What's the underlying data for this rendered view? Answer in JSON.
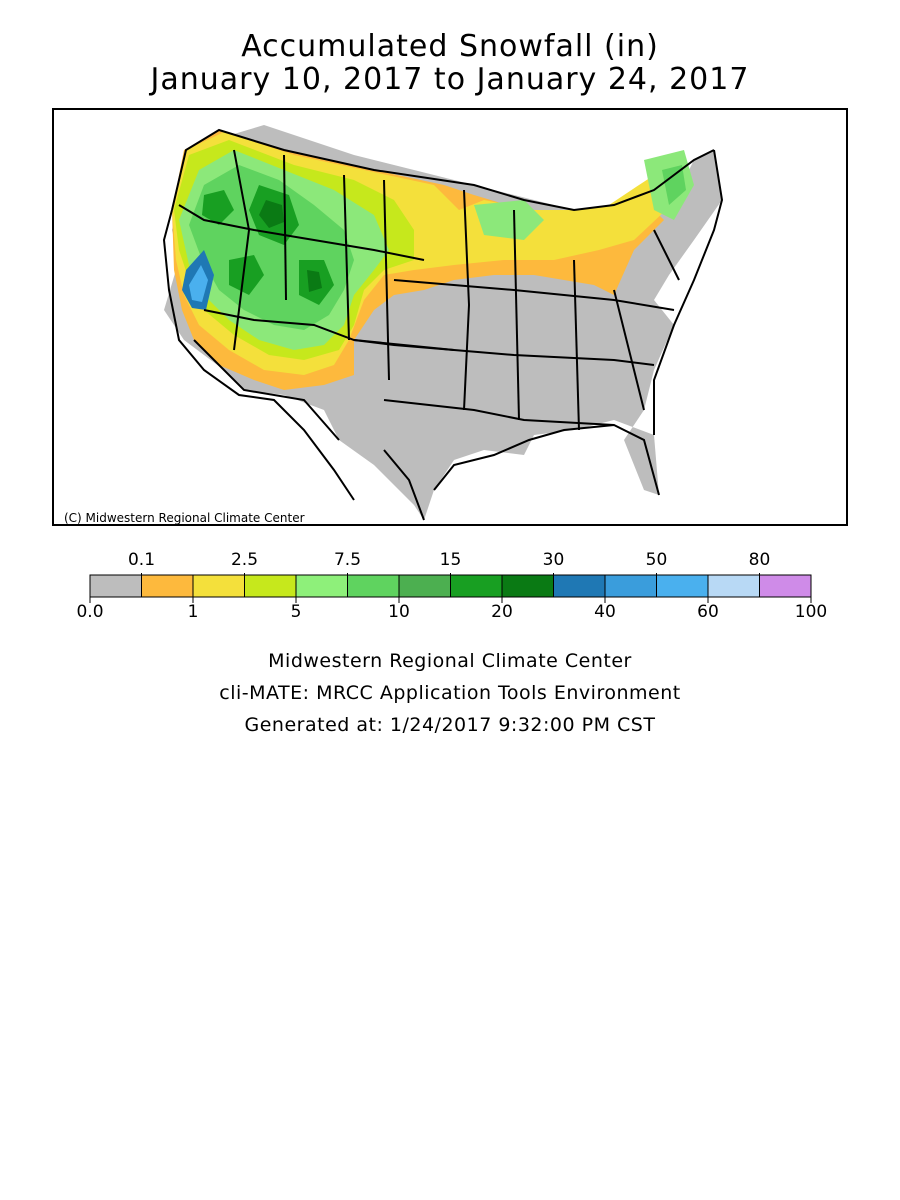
{
  "title": {
    "line1": "Accumulated Snowfall (in)",
    "line2": "January 10, 2017 to January 24, 2017"
  },
  "map": {
    "copyright": "(C) Midwestern Regional Climate Center",
    "region": "Contiguous United States",
    "colors": {
      "none": "#bdbdbd",
      "trace": "#fdb93d",
      "light": "#f4e03b",
      "moderate": "#c6e81c",
      "heavy_green_light": "#8ce87a",
      "heavy_green": "#5fd35f",
      "heavy_green_dark": "#4caf50",
      "deep_green": "#189f22",
      "darkest_green": "#0a7a14",
      "blue": "#2c8fd8"
    }
  },
  "legend": {
    "top_labels": [
      "0.1",
      "2.5",
      "7.5",
      "15",
      "30",
      "50",
      "80"
    ],
    "bottom_labels": [
      "0.0",
      "1",
      "5",
      "10",
      "20",
      "40",
      "60",
      "100"
    ],
    "bins": [
      {
        "color": "#bdbdbd"
      },
      {
        "color": "#fdb93d"
      },
      {
        "color": "#f4e03b"
      },
      {
        "color": "#c6e81c"
      },
      {
        "color": "#8ef07a"
      },
      {
        "color": "#5fd35f"
      },
      {
        "color": "#4caf50"
      },
      {
        "color": "#189f22"
      },
      {
        "color": "#0a7a14"
      },
      {
        "color": "#1f78b4"
      },
      {
        "color": "#3a9ddc"
      },
      {
        "color": "#4ab0ee"
      },
      {
        "color": "#b8d9f5"
      },
      {
        "color": "#cf8be8"
      }
    ]
  },
  "footer": {
    "line1": "Midwestern Regional Climate Center",
    "line2": "cli-MATE: MRCC Application Tools Environment",
    "line3": "Generated at: 1/24/2017 9:32:00 PM CST"
  }
}
